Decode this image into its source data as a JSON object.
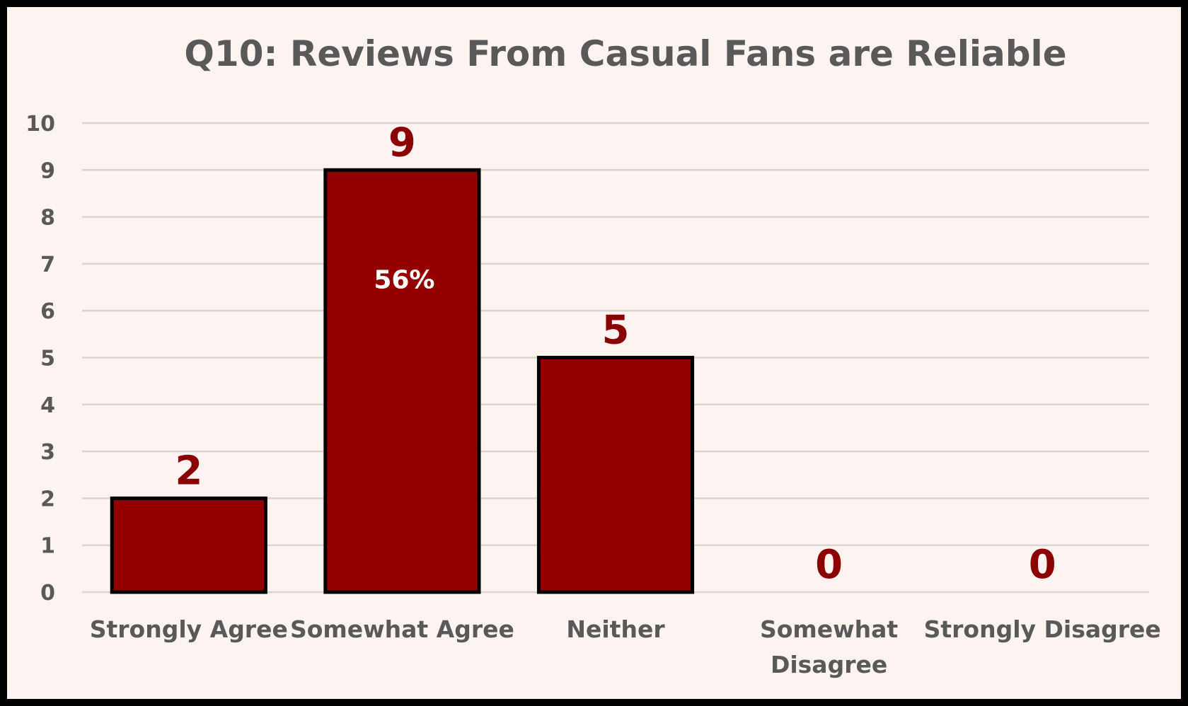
{
  "chart_data": {
    "type": "bar",
    "title": "Q10: Reviews From Casual Fans are Reliable",
    "xlabel": "",
    "ylabel": "",
    "categories": [
      [
        "Strongly Agree"
      ],
      [
        "Somewhat Agree"
      ],
      [
        "Neither"
      ],
      [
        "Somewhat",
        "Disagree"
      ],
      [
        "Strongly Disagree"
      ]
    ],
    "values": [
      2,
      9,
      5,
      0,
      0
    ],
    "value_labels": [
      "2",
      "9",
      "5",
      "0",
      "0"
    ],
    "inner_labels": [
      "",
      "56%",
      "",
      "",
      ""
    ],
    "ylim": [
      0,
      10
    ],
    "yticks": [
      0,
      1,
      2,
      3,
      4,
      5,
      6,
      7,
      8,
      9,
      10
    ],
    "grid": true,
    "legend": "none",
    "colors": {
      "bar_fill": "#940000",
      "bar_stroke": "#000000",
      "value_label": "#8b0000",
      "axis_text": "#595959",
      "grid": "#d9d4d2",
      "background": "#fdf4f1"
    }
  }
}
